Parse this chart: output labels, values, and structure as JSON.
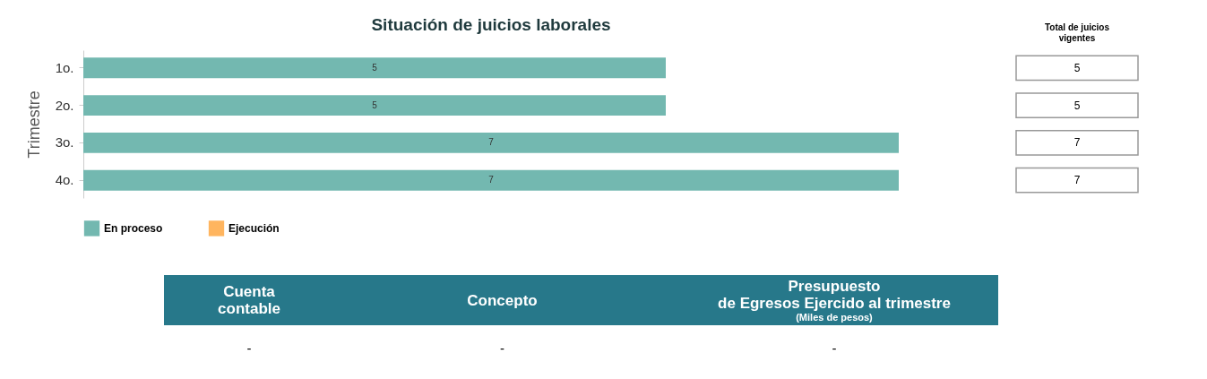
{
  "chart_data": {
    "type": "bar",
    "orientation": "horizontal",
    "title": "Situación de juicios laborales",
    "ylabel": "Trimestre",
    "categories": [
      "1o.",
      "2o.",
      "3o.",
      "4o."
    ],
    "series": [
      {
        "name": "En proceso",
        "color": "#73b8b0",
        "values": [
          5,
          5,
          7,
          7
        ],
        "value_labels": [
          "5",
          "5",
          "7",
          "7"
        ]
      },
      {
        "name": "Ejecución",
        "color": "#ffb55f",
        "values": [
          null,
          null,
          null,
          null
        ]
      }
    ],
    "totals": [
      "5",
      "5",
      "7",
      "7"
    ],
    "legend": "bottom",
    "annotations": [
      "Total de juicios vigentes",
      "Cuenta contable",
      "Concepto",
      "Presupuesto de Egresos Ejercido al trimestre",
      "(Miles de pesos)",
      "-",
      "-",
      "-"
    ]
  }
}
